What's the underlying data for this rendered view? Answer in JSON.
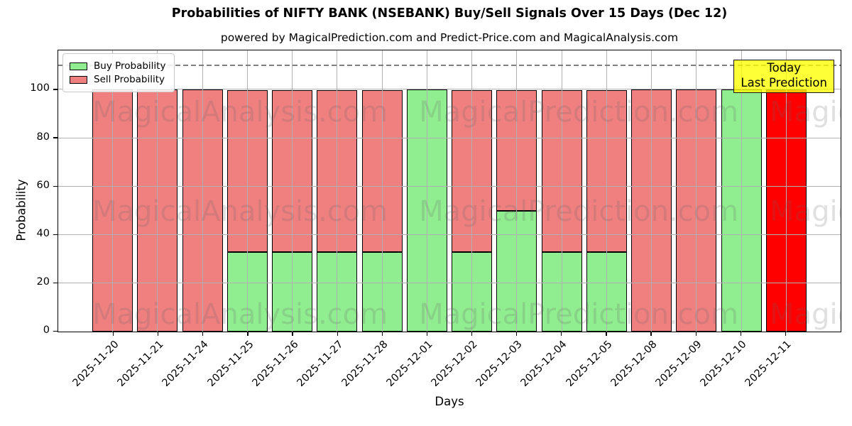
{
  "chart_data": {
    "type": "bar",
    "stacked": true,
    "title": "Probabilities of NIFTY BANK (NSEBANK) Buy/Sell Signals Over 15 Days (Dec 12)",
    "subtitle": "powered by MagicalPrediction.com and Predict-Price.com and MagicalAnalysis.com",
    "xlabel": "Days",
    "ylabel": "Probability",
    "ylim": [
      0,
      116
    ],
    "yticks": [
      0,
      20,
      40,
      60,
      80,
      100
    ],
    "grid": true,
    "grid_color": "#b0b0b0",
    "cutoff_line": {
      "y": 110,
      "style": "dashed",
      "color": "#7f7f7f"
    },
    "legend_position": "upper left",
    "categories": [
      "2025-11-20",
      "2025-11-21",
      "2025-11-24",
      "2025-11-25",
      "2025-11-26",
      "2025-11-27",
      "2025-11-28",
      "2025-12-01",
      "2025-12-02",
      "2025-12-03",
      "2025-12-04",
      "2025-12-05",
      "2025-12-08",
      "2025-12-09",
      "2025-12-10",
      "2025-12-11"
    ],
    "series": [
      {
        "name": "Buy Probability",
        "color": "#90ee90",
        "in_legend": true,
        "values": [
          0,
          0,
          0,
          33,
          33,
          33,
          33,
          100,
          33,
          50,
          33,
          33,
          0,
          0,
          100,
          0
        ]
      },
      {
        "name": "Sell Probability",
        "color": "#f08080",
        "in_legend": true,
        "values": [
          100,
          100,
          100,
          67,
          67,
          67,
          67,
          0,
          67,
          50,
          67,
          67,
          100,
          100,
          0,
          0
        ]
      },
      {
        "name": "Today Last Prediction",
        "color": "#ff0000",
        "in_legend": false,
        "values": [
          0,
          0,
          0,
          0,
          0,
          0,
          0,
          0,
          0,
          0,
          0,
          0,
          0,
          0,
          0,
          100
        ]
      }
    ],
    "annotation": {
      "line1": "Today",
      "line2": "Last Prediction",
      "bg": "#ffff00"
    }
  },
  "watermarks": {
    "left": "MagicalAnalysis.com",
    "right": "MagicalPrediction.com"
  }
}
